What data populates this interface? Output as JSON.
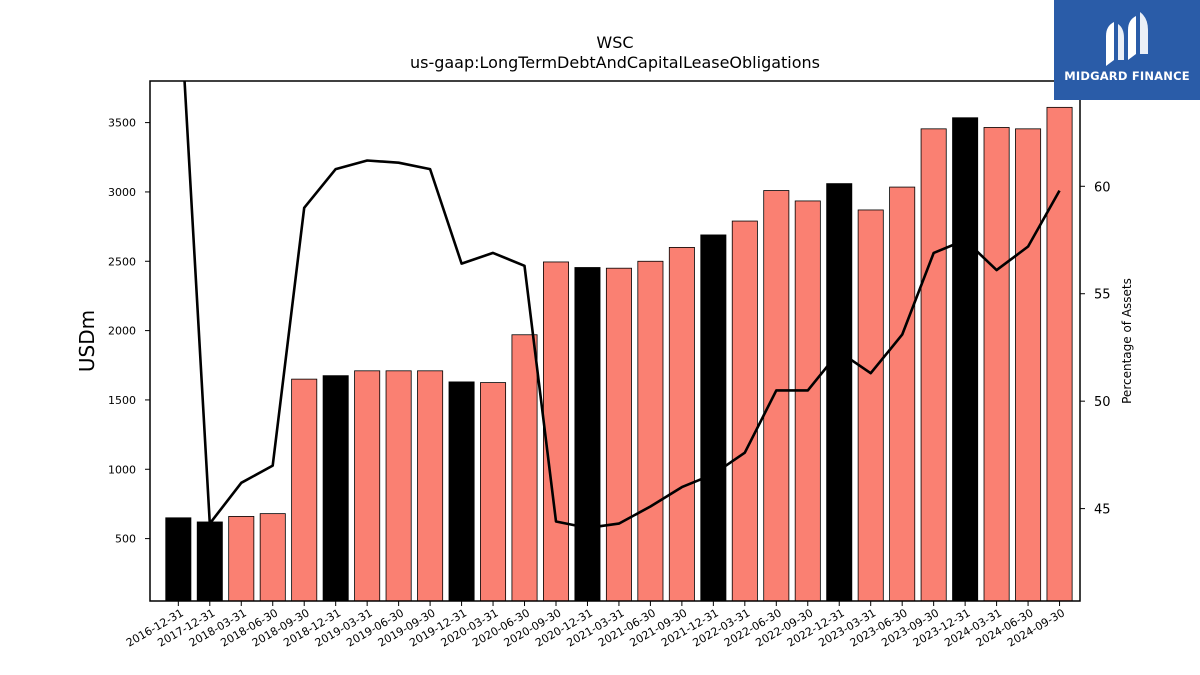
{
  "brand": {
    "name": "MIDGARD FINANCE",
    "color": "#2a5ca8"
  },
  "chart_data": {
    "type": "bar",
    "title": "WSC",
    "subtitle": "us-gaap:LongTermDebtAndCapitalLeaseObligations",
    "ylabel": "USDm",
    "y2label": "Percentage of Assets",
    "ylim": [
      50,
      3800
    ],
    "y2lim": [
      40.7,
      64.9
    ],
    "yticks": [
      500,
      1000,
      1500,
      2000,
      2500,
      3000,
      3500
    ],
    "y2ticks": [
      45,
      50,
      55,
      60
    ],
    "grid": false,
    "colors": {
      "annual": "#000000",
      "quarterly": "#fa8072",
      "line": "#000000"
    },
    "categories": [
      "2016-12-31",
      "2017-12-31",
      "2018-03-31",
      "2018-06-30",
      "2018-09-30",
      "2018-12-31",
      "2019-03-31",
      "2019-06-30",
      "2019-09-30",
      "2019-12-31",
      "2020-03-31",
      "2020-06-30",
      "2020-09-30",
      "2020-12-31",
      "2021-03-31",
      "2021-06-30",
      "2021-09-30",
      "2021-12-31",
      "2022-03-31",
      "2022-06-30",
      "2022-09-30",
      "2022-12-31",
      "2023-03-31",
      "2023-06-30",
      "2023-09-30",
      "2023-12-31",
      "2024-03-31",
      "2024-06-30",
      "2024-09-30"
    ],
    "series": [
      {
        "type": "bar",
        "values": [
          650,
          620,
          660,
          680,
          1650,
          1675,
          1710,
          1710,
          1710,
          1630,
          1625,
          1970,
          2495,
          2455,
          2450,
          2500,
          2600,
          2690,
          2790,
          3010,
          2935,
          3060,
          2870,
          3035,
          3455,
          3535,
          3465,
          3455,
          3610
        ],
        "annual": [
          true,
          true,
          false,
          false,
          false,
          true,
          false,
          false,
          false,
          true,
          false,
          false,
          false,
          true,
          false,
          false,
          false,
          true,
          false,
          false,
          false,
          true,
          false,
          false,
          false,
          true,
          false,
          false,
          false
        ]
      },
      {
        "type": "line",
        "axis": "right",
        "values": [
          70,
          44.3,
          46.2,
          47.0,
          59.0,
          60.8,
          61.2,
          61.1,
          60.8,
          56.4,
          56.9,
          56.3,
          44.4,
          44.1,
          44.3,
          45.1,
          46.0,
          46.6,
          47.6,
          50.5,
          50.5,
          52.3,
          51.3,
          53.1,
          56.9,
          57.5,
          56.1,
          57.2,
          59.8
        ]
      }
    ]
  }
}
